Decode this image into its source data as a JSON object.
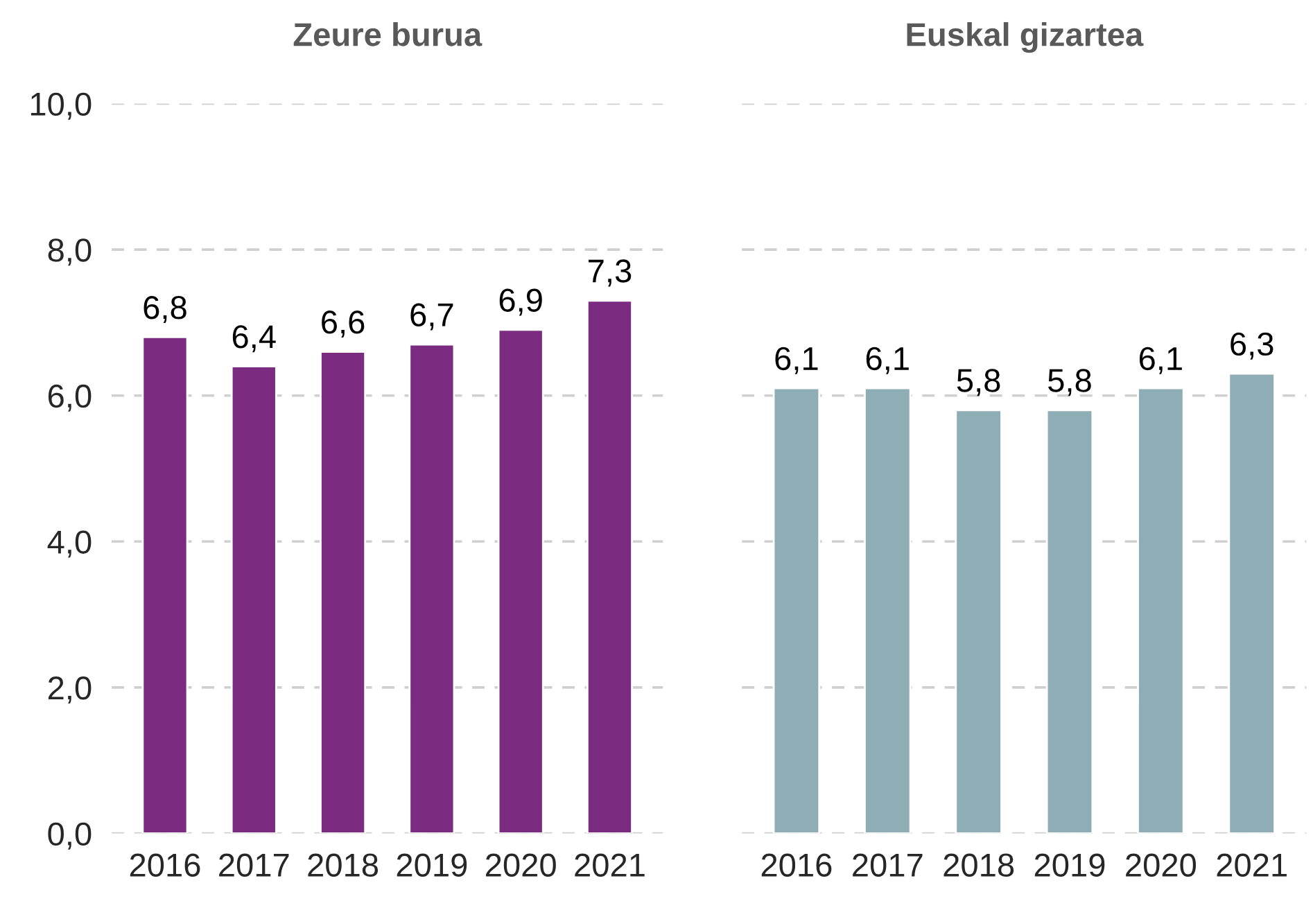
{
  "chart_data": [
    {
      "type": "bar",
      "title": "Zeure burua",
      "categories": [
        "2016",
        "2017",
        "2018",
        "2019",
        "2020",
        "2021"
      ],
      "series": [
        {
          "color": "#7b2c80",
          "values": [
            6.8,
            6.4,
            6.6,
            6.7,
            6.9,
            7.3
          ],
          "value_labels": [
            "6,8",
            "6,4",
            "6,6",
            "6,7",
            "6,9",
            "7,3"
          ]
        }
      ],
      "ylim": [
        0,
        10
      ],
      "yticks": [
        {
          "value": 0,
          "label": "0,0"
        },
        {
          "value": 2,
          "label": "2,0"
        },
        {
          "value": 4,
          "label": "4,0"
        },
        {
          "value": 6,
          "label": "6,0"
        },
        {
          "value": 8,
          "label": "8,0"
        },
        {
          "value": 10,
          "label": "10,0"
        }
      ],
      "grid": "y"
    },
    {
      "type": "bar",
      "title": "Euskal gizartea",
      "categories": [
        "2016",
        "2017",
        "2018",
        "2019",
        "2020",
        "2021"
      ],
      "series": [
        {
          "color": "#8fadb5",
          "values": [
            6.1,
            6.1,
            5.8,
            5.8,
            6.1,
            6.3
          ],
          "value_labels": [
            "6,1",
            "6,1",
            "5,8",
            "5,8",
            "6,1",
            "6,3"
          ]
        }
      ],
      "ylim": [
        0,
        10
      ],
      "yticks": [
        {
          "value": 0,
          "label": null
        },
        {
          "value": 2,
          "label": null
        },
        {
          "value": 4,
          "label": null
        },
        {
          "value": 6,
          "label": null
        },
        {
          "value": 8,
          "label": null
        },
        {
          "value": 10,
          "label": null
        }
      ],
      "grid": "y",
      "tick_labels": "x"
    }
  ]
}
